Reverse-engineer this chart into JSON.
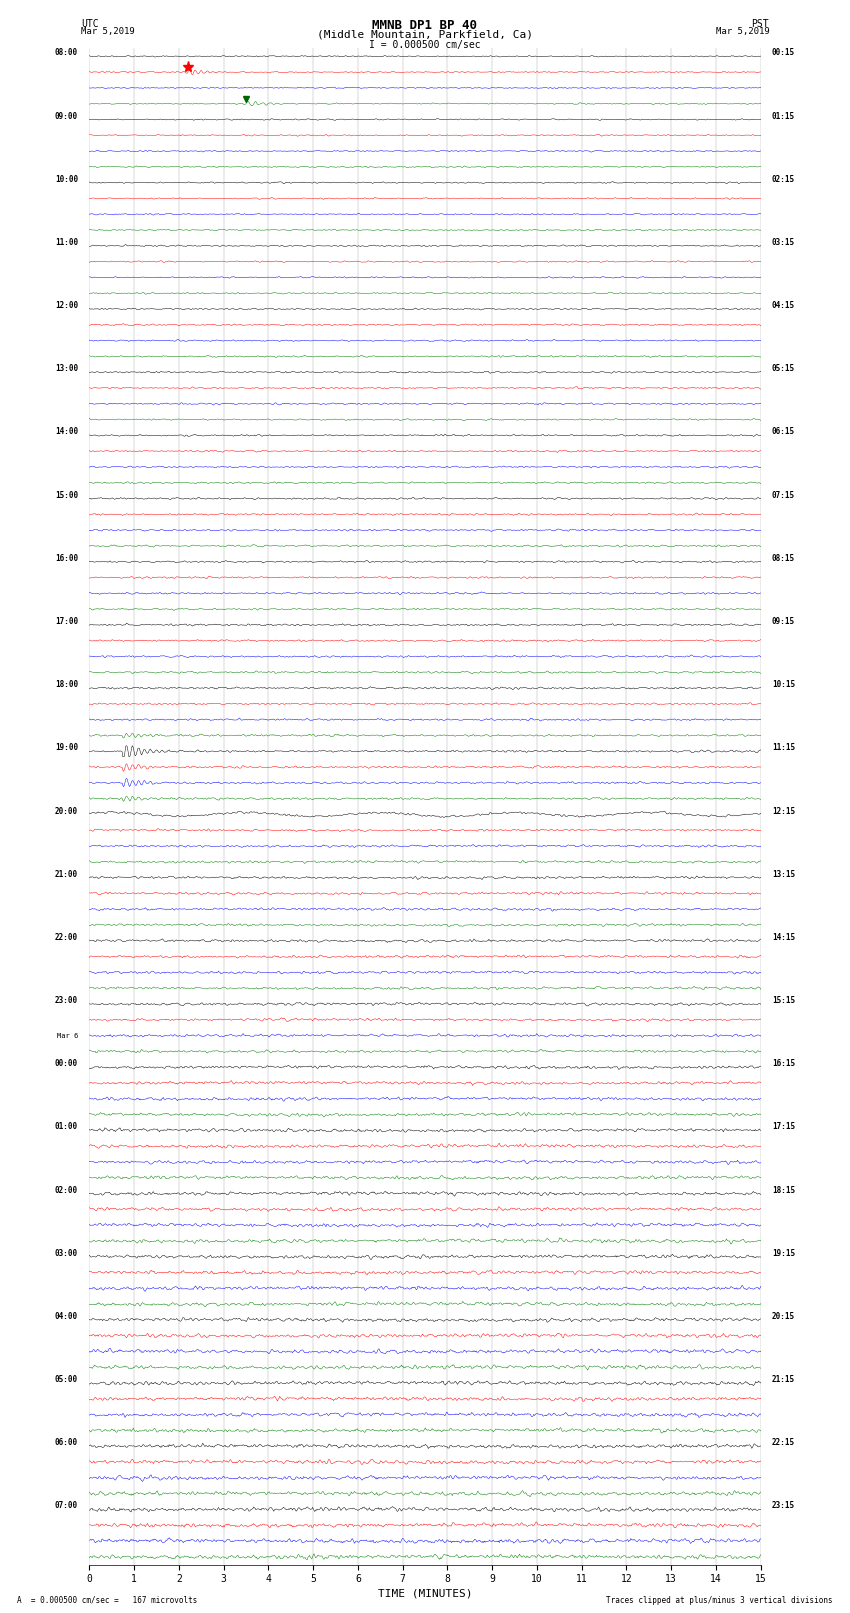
{
  "title_line1": "MMNB DP1 BP 40",
  "title_line2": "(Middle Mountain, Parkfield, Ca)",
  "scale_label": "I = 0.000500 cm/sec",
  "xlabel": "TIME (MINUTES)",
  "footer_left": "A  = 0.000500 cm/sec =   167 microvolts",
  "footer_right": "Traces clipped at plus/minus 3 vertical divisions",
  "colors": [
    "black",
    "red",
    "blue",
    "green"
  ],
  "bg_color": "white",
  "num_rows": 96,
  "xticks": [
    0,
    1,
    2,
    3,
    4,
    5,
    6,
    7,
    8,
    9,
    10,
    11,
    12,
    13,
    14,
    15
  ],
  "xlim": [
    0,
    15
  ],
  "noise_seed": 42,
  "utc_labels": [
    [
      0,
      "08:00"
    ],
    [
      4,
      "09:00"
    ],
    [
      8,
      "10:00"
    ],
    [
      12,
      "11:00"
    ],
    [
      16,
      "12:00"
    ],
    [
      20,
      "13:00"
    ],
    [
      24,
      "14:00"
    ],
    [
      28,
      "15:00"
    ],
    [
      32,
      "16:00"
    ],
    [
      36,
      "17:00"
    ],
    [
      40,
      "18:00"
    ],
    [
      44,
      "19:00"
    ],
    [
      48,
      "20:00"
    ],
    [
      52,
      "21:00"
    ],
    [
      56,
      "22:00"
    ],
    [
      60,
      "23:00"
    ],
    [
      64,
      "00:00"
    ],
    [
      68,
      "01:00"
    ],
    [
      72,
      "02:00"
    ],
    [
      76,
      "03:00"
    ],
    [
      80,
      "04:00"
    ],
    [
      84,
      "05:00"
    ],
    [
      88,
      "06:00"
    ],
    [
      92,
      "07:00"
    ]
  ],
  "pst_labels": [
    [
      0,
      "00:15"
    ],
    [
      4,
      "01:15"
    ],
    [
      8,
      "02:15"
    ],
    [
      12,
      "03:15"
    ],
    [
      16,
      "04:15"
    ],
    [
      20,
      "05:15"
    ],
    [
      24,
      "06:15"
    ],
    [
      28,
      "07:15"
    ],
    [
      32,
      "08:15"
    ],
    [
      36,
      "09:15"
    ],
    [
      40,
      "10:15"
    ],
    [
      44,
      "11:15"
    ],
    [
      48,
      "12:15"
    ],
    [
      52,
      "13:15"
    ],
    [
      56,
      "14:15"
    ],
    [
      60,
      "15:15"
    ],
    [
      64,
      "16:15"
    ],
    [
      68,
      "17:15"
    ],
    [
      72,
      "18:15"
    ],
    [
      76,
      "19:15"
    ],
    [
      80,
      "20:15"
    ],
    [
      84,
      "21:15"
    ],
    [
      88,
      "22:15"
    ],
    [
      92,
      "23:15"
    ]
  ]
}
